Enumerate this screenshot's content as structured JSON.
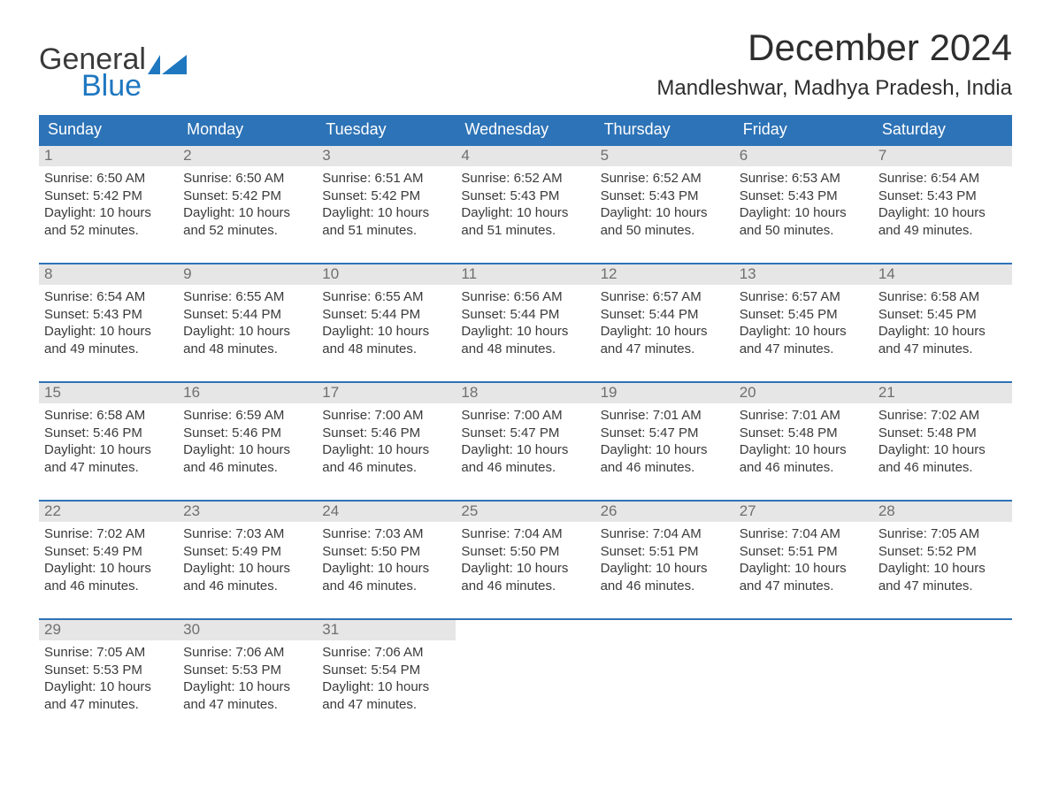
{
  "logo": {
    "line1": "General",
    "line2": "Blue"
  },
  "title": "December 2024",
  "location": "Mandleshwar, Madhya Pradesh, India",
  "style": {
    "header_bg": "#2d73b7",
    "header_text": "#ffffff",
    "daynum_bg": "#e6e6e6",
    "daynum_text": "#6f6f6f",
    "body_text": "#3a3a3a",
    "week_border": "#2d73b7",
    "background": "#ffffff",
    "title_fontsize": 42,
    "location_fontsize": 24,
    "header_fontsize": 18,
    "body_fontsize": 15
  },
  "daynames": [
    "Sunday",
    "Monday",
    "Tuesday",
    "Wednesday",
    "Thursday",
    "Friday",
    "Saturday"
  ],
  "weeks": [
    [
      {
        "n": "1",
        "sunrise": "Sunrise: 6:50 AM",
        "sunset": "Sunset: 5:42 PM",
        "d1": "Daylight: 10 hours",
        "d2": "and 52 minutes."
      },
      {
        "n": "2",
        "sunrise": "Sunrise: 6:50 AM",
        "sunset": "Sunset: 5:42 PM",
        "d1": "Daylight: 10 hours",
        "d2": "and 52 minutes."
      },
      {
        "n": "3",
        "sunrise": "Sunrise: 6:51 AM",
        "sunset": "Sunset: 5:42 PM",
        "d1": "Daylight: 10 hours",
        "d2": "and 51 minutes."
      },
      {
        "n": "4",
        "sunrise": "Sunrise: 6:52 AM",
        "sunset": "Sunset: 5:43 PM",
        "d1": "Daylight: 10 hours",
        "d2": "and 51 minutes."
      },
      {
        "n": "5",
        "sunrise": "Sunrise: 6:52 AM",
        "sunset": "Sunset: 5:43 PM",
        "d1": "Daylight: 10 hours",
        "d2": "and 50 minutes."
      },
      {
        "n": "6",
        "sunrise": "Sunrise: 6:53 AM",
        "sunset": "Sunset: 5:43 PM",
        "d1": "Daylight: 10 hours",
        "d2": "and 50 minutes."
      },
      {
        "n": "7",
        "sunrise": "Sunrise: 6:54 AM",
        "sunset": "Sunset: 5:43 PM",
        "d1": "Daylight: 10 hours",
        "d2": "and 49 minutes."
      }
    ],
    [
      {
        "n": "8",
        "sunrise": "Sunrise: 6:54 AM",
        "sunset": "Sunset: 5:43 PM",
        "d1": "Daylight: 10 hours",
        "d2": "and 49 minutes."
      },
      {
        "n": "9",
        "sunrise": "Sunrise: 6:55 AM",
        "sunset": "Sunset: 5:44 PM",
        "d1": "Daylight: 10 hours",
        "d2": "and 48 minutes."
      },
      {
        "n": "10",
        "sunrise": "Sunrise: 6:55 AM",
        "sunset": "Sunset: 5:44 PM",
        "d1": "Daylight: 10 hours",
        "d2": "and 48 minutes."
      },
      {
        "n": "11",
        "sunrise": "Sunrise: 6:56 AM",
        "sunset": "Sunset: 5:44 PM",
        "d1": "Daylight: 10 hours",
        "d2": "and 48 minutes."
      },
      {
        "n": "12",
        "sunrise": "Sunrise: 6:57 AM",
        "sunset": "Sunset: 5:44 PM",
        "d1": "Daylight: 10 hours",
        "d2": "and 47 minutes."
      },
      {
        "n": "13",
        "sunrise": "Sunrise: 6:57 AM",
        "sunset": "Sunset: 5:45 PM",
        "d1": "Daylight: 10 hours",
        "d2": "and 47 minutes."
      },
      {
        "n": "14",
        "sunrise": "Sunrise: 6:58 AM",
        "sunset": "Sunset: 5:45 PM",
        "d1": "Daylight: 10 hours",
        "d2": "and 47 minutes."
      }
    ],
    [
      {
        "n": "15",
        "sunrise": "Sunrise: 6:58 AM",
        "sunset": "Sunset: 5:46 PM",
        "d1": "Daylight: 10 hours",
        "d2": "and 47 minutes."
      },
      {
        "n": "16",
        "sunrise": "Sunrise: 6:59 AM",
        "sunset": "Sunset: 5:46 PM",
        "d1": "Daylight: 10 hours",
        "d2": "and 46 minutes."
      },
      {
        "n": "17",
        "sunrise": "Sunrise: 7:00 AM",
        "sunset": "Sunset: 5:46 PM",
        "d1": "Daylight: 10 hours",
        "d2": "and 46 minutes."
      },
      {
        "n": "18",
        "sunrise": "Sunrise: 7:00 AM",
        "sunset": "Sunset: 5:47 PM",
        "d1": "Daylight: 10 hours",
        "d2": "and 46 minutes."
      },
      {
        "n": "19",
        "sunrise": "Sunrise: 7:01 AM",
        "sunset": "Sunset: 5:47 PM",
        "d1": "Daylight: 10 hours",
        "d2": "and 46 minutes."
      },
      {
        "n": "20",
        "sunrise": "Sunrise: 7:01 AM",
        "sunset": "Sunset: 5:48 PM",
        "d1": "Daylight: 10 hours",
        "d2": "and 46 minutes."
      },
      {
        "n": "21",
        "sunrise": "Sunrise: 7:02 AM",
        "sunset": "Sunset: 5:48 PM",
        "d1": "Daylight: 10 hours",
        "d2": "and 46 minutes."
      }
    ],
    [
      {
        "n": "22",
        "sunrise": "Sunrise: 7:02 AM",
        "sunset": "Sunset: 5:49 PM",
        "d1": "Daylight: 10 hours",
        "d2": "and 46 minutes."
      },
      {
        "n": "23",
        "sunrise": "Sunrise: 7:03 AM",
        "sunset": "Sunset: 5:49 PM",
        "d1": "Daylight: 10 hours",
        "d2": "and 46 minutes."
      },
      {
        "n": "24",
        "sunrise": "Sunrise: 7:03 AM",
        "sunset": "Sunset: 5:50 PM",
        "d1": "Daylight: 10 hours",
        "d2": "and 46 minutes."
      },
      {
        "n": "25",
        "sunrise": "Sunrise: 7:04 AM",
        "sunset": "Sunset: 5:50 PM",
        "d1": "Daylight: 10 hours",
        "d2": "and 46 minutes."
      },
      {
        "n": "26",
        "sunrise": "Sunrise: 7:04 AM",
        "sunset": "Sunset: 5:51 PM",
        "d1": "Daylight: 10 hours",
        "d2": "and 46 minutes."
      },
      {
        "n": "27",
        "sunrise": "Sunrise: 7:04 AM",
        "sunset": "Sunset: 5:51 PM",
        "d1": "Daylight: 10 hours",
        "d2": "and 47 minutes."
      },
      {
        "n": "28",
        "sunrise": "Sunrise: 7:05 AM",
        "sunset": "Sunset: 5:52 PM",
        "d1": "Daylight: 10 hours",
        "d2": "and 47 minutes."
      }
    ],
    [
      {
        "n": "29",
        "sunrise": "Sunrise: 7:05 AM",
        "sunset": "Sunset: 5:53 PM",
        "d1": "Daylight: 10 hours",
        "d2": "and 47 minutes."
      },
      {
        "n": "30",
        "sunrise": "Sunrise: 7:06 AM",
        "sunset": "Sunset: 5:53 PM",
        "d1": "Daylight: 10 hours",
        "d2": "and 47 minutes."
      },
      {
        "n": "31",
        "sunrise": "Sunrise: 7:06 AM",
        "sunset": "Sunset: 5:54 PM",
        "d1": "Daylight: 10 hours",
        "d2": "and 47 minutes."
      },
      {
        "n": "",
        "blank": true
      },
      {
        "n": "",
        "blank": true
      },
      {
        "n": "",
        "blank": true
      },
      {
        "n": "",
        "blank": true
      }
    ]
  ]
}
